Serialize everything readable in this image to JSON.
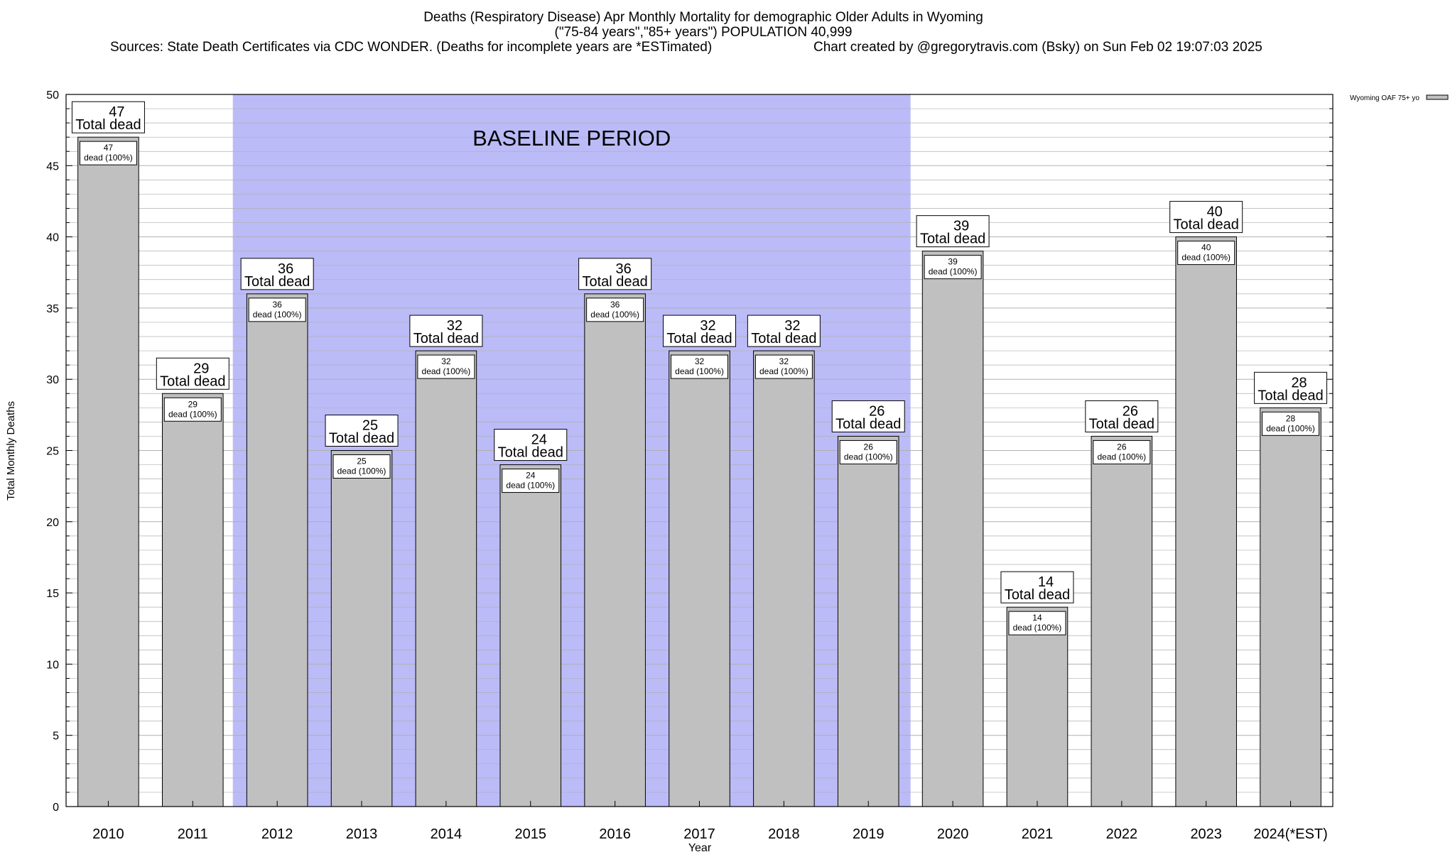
{
  "chart_data": {
    "type": "bar",
    "title_lines": [
      "Deaths (Respiratory Disease) Apr Monthly Mortality for demographic Older Adults in Wyoming",
      "(\"75-84 years\",\"85+ years\") POPULATION 40,999"
    ],
    "sources": "Sources: State Death Certificates via CDC WONDER. (Deaths for incomplete years are *ESTimated)",
    "credit": "Chart created by @gregorytravis.com (Bsky) on Sun Feb 02 19:07:03 2025",
    "xlabel": "Year",
    "ylabel": "Total Monthly Deaths",
    "ylim": [
      0,
      50
    ],
    "y_major_ticks": [
      0,
      5,
      10,
      15,
      20,
      25,
      30,
      35,
      40,
      45,
      50
    ],
    "y_minor_step": 1,
    "grid": true,
    "categories": [
      "2010",
      "2011",
      "2012",
      "2013",
      "2014",
      "2015",
      "2016",
      "2017",
      "2018",
      "2019",
      "2020",
      "2021",
      "2022",
      "2023",
      "2024(*EST)"
    ],
    "series": [
      {
        "name": "Wyoming OAF 75+ yo",
        "values": [
          47,
          29,
          36,
          25,
          32,
          24,
          36,
          32,
          32,
          26,
          39,
          14,
          26,
          40,
          28
        ]
      }
    ],
    "label_top_suffix": "Total dead",
    "label_inner_suffix": "dead (100%)",
    "baseline": {
      "label": "BASELINE PERIOD",
      "from_category": "2012",
      "to_category": "2019"
    },
    "legend_position": "top-right",
    "colors": {
      "bar_fill": "#c0c0c0",
      "bar_stroke": "#000000",
      "baseline_fill": "#bbbbf8",
      "grid": "#b0b0b0",
      "background": "#ffffff"
    }
  }
}
